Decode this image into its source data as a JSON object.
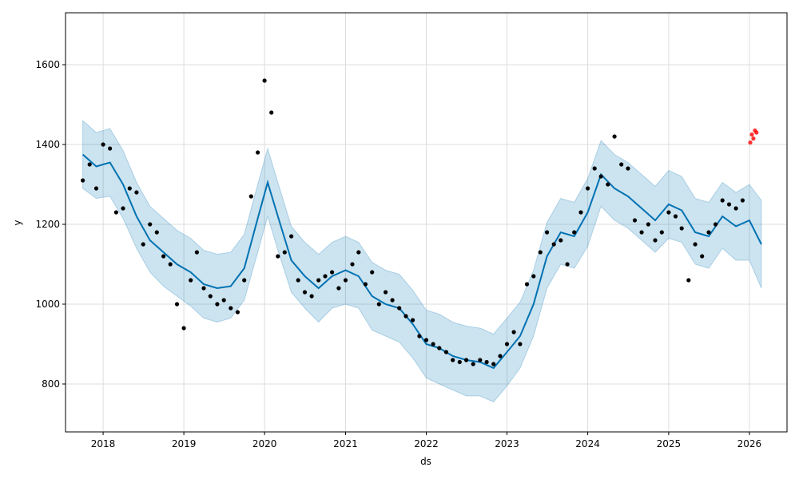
{
  "chart_data": {
    "type": "line",
    "title": "",
    "xlabel": "ds",
    "ylabel": "y",
    "xlim": [
      "2017-07-15",
      "2026-06-20"
    ],
    "ylim": [
      680,
      1730
    ],
    "grid": true,
    "legend": "none",
    "x_ticks": [
      "2018",
      "2019",
      "2020",
      "2021",
      "2022",
      "2023",
      "2024",
      "2025",
      "2026"
    ],
    "y_ticks": [
      800,
      1000,
      1200,
      1400,
      1600
    ],
    "colors": {
      "forecast_line": "#0072B2",
      "uncertainty_band": "#0072B2",
      "observed_points": "#000000",
      "new_points": "#ff0000",
      "grid": "#dddddd"
    },
    "series": [
      {
        "role": "forecast",
        "style": "line",
        "x": [
          "2017-10-01",
          "2017-12-01",
          "2018-02-01",
          "2018-04-01",
          "2018-06-01",
          "2018-08-01",
          "2018-10-01",
          "2018-12-01",
          "2019-02-01",
          "2019-04-01",
          "2019-06-01",
          "2019-08-01",
          "2019-10-01",
          "2019-12-01",
          "2020-01-15",
          "2020-03-01",
          "2020-05-01",
          "2020-07-01",
          "2020-09-01",
          "2020-11-01",
          "2021-01-01",
          "2021-03-01",
          "2021-05-01",
          "2021-07-01",
          "2021-09-01",
          "2021-11-01",
          "2022-01-01",
          "2022-03-01",
          "2022-05-01",
          "2022-07-01",
          "2022-09-01",
          "2022-11-01",
          "2023-01-01",
          "2023-03-01",
          "2023-05-01",
          "2023-07-01",
          "2023-09-01",
          "2023-11-01",
          "2024-01-01",
          "2024-03-01",
          "2024-05-01",
          "2024-07-01",
          "2024-09-01",
          "2024-11-01",
          "2025-01-01",
          "2025-03-01",
          "2025-05-01",
          "2025-07-01",
          "2025-09-01",
          "2025-11-01",
          "2026-01-01",
          "2026-02-24"
        ],
        "y": [
          1375,
          1345,
          1355,
          1300,
          1220,
          1160,
          1130,
          1100,
          1080,
          1050,
          1040,
          1045,
          1090,
          1215,
          1305,
          1220,
          1110,
          1070,
          1040,
          1070,
          1085,
          1070,
          1020,
          1000,
          990,
          950,
          900,
          890,
          870,
          860,
          855,
          840,
          880,
          920,
          1000,
          1120,
          1180,
          1170,
          1230,
          1325,
          1290,
          1270,
          1240,
          1210,
          1250,
          1235,
          1180,
          1170,
          1220,
          1195,
          1210,
          1150
        ]
      },
      {
        "role": "uncertainty_interval",
        "style": "band",
        "x": [
          "2017-10-01",
          "2017-12-01",
          "2018-02-01",
          "2018-04-01",
          "2018-06-01",
          "2018-08-01",
          "2018-10-01",
          "2018-12-01",
          "2019-02-01",
          "2019-04-01",
          "2019-06-01",
          "2019-08-01",
          "2019-10-01",
          "2019-12-01",
          "2020-01-15",
          "2020-03-01",
          "2020-05-01",
          "2020-07-01",
          "2020-09-01",
          "2020-11-01",
          "2021-01-01",
          "2021-03-01",
          "2021-05-01",
          "2021-07-01",
          "2021-09-01",
          "2021-11-01",
          "2022-01-01",
          "2022-03-01",
          "2022-05-01",
          "2022-07-01",
          "2022-09-01",
          "2022-11-01",
          "2023-01-01",
          "2023-03-01",
          "2023-05-01",
          "2023-07-01",
          "2023-09-01",
          "2023-11-01",
          "2024-01-01",
          "2024-03-01",
          "2024-05-01",
          "2024-07-01",
          "2024-09-01",
          "2024-11-01",
          "2025-01-01",
          "2025-03-01",
          "2025-05-01",
          "2025-07-01",
          "2025-09-01",
          "2025-11-01",
          "2026-01-01",
          "2026-02-24"
        ],
        "lower": [
          1290,
          1265,
          1270,
          1215,
          1140,
          1080,
          1045,
          1020,
          995,
          965,
          955,
          965,
          1010,
          1130,
          1220,
          1135,
          1030,
          990,
          955,
          990,
          1000,
          990,
          935,
          920,
          905,
          865,
          815,
          800,
          785,
          770,
          770,
          755,
          795,
          840,
          920,
          1040,
          1100,
          1090,
          1145,
          1245,
          1210,
          1190,
          1160,
          1130,
          1165,
          1155,
          1100,
          1090,
          1140,
          1110,
          1110,
          1040
        ],
        "upper": [
          1460,
          1430,
          1440,
          1385,
          1305,
          1245,
          1215,
          1185,
          1165,
          1135,
          1125,
          1130,
          1175,
          1300,
          1390,
          1305,
          1195,
          1155,
          1125,
          1155,
          1170,
          1155,
          1105,
          1085,
          1075,
          1035,
          985,
          975,
          955,
          945,
          940,
          925,
          965,
          1005,
          1085,
          1205,
          1265,
          1255,
          1315,
          1410,
          1375,
          1355,
          1325,
          1295,
          1335,
          1320,
          1265,
          1255,
          1305,
          1280,
          1300,
          1260
        ]
      },
      {
        "role": "observed",
        "style": "scatter",
        "x": [
          "2017-10-01",
          "2017-11-01",
          "2017-12-01",
          "2018-01-01",
          "2018-02-01",
          "2018-03-01",
          "2018-04-01",
          "2018-05-01",
          "2018-06-01",
          "2018-07-01",
          "2018-08-01",
          "2018-09-01",
          "2018-10-01",
          "2018-11-01",
          "2018-12-01",
          "2019-01-01",
          "2019-02-01",
          "2019-03-01",
          "2019-04-01",
          "2019-05-01",
          "2019-06-01",
          "2019-07-01",
          "2019-08-01",
          "2019-09-01",
          "2019-10-01",
          "2019-11-01",
          "2019-12-01",
          "2020-01-01",
          "2020-02-01",
          "2020-03-01",
          "2020-04-01",
          "2020-05-01",
          "2020-06-01",
          "2020-07-01",
          "2020-08-01",
          "2020-09-01",
          "2020-10-01",
          "2020-11-01",
          "2020-12-01",
          "2021-01-01",
          "2021-02-01",
          "2021-03-01",
          "2021-04-01",
          "2021-05-01",
          "2021-06-01",
          "2021-07-01",
          "2021-08-01",
          "2021-09-01",
          "2021-10-01",
          "2021-11-01",
          "2021-12-01",
          "2022-01-01",
          "2022-02-01",
          "2022-03-01",
          "2022-04-01",
          "2022-05-01",
          "2022-06-01",
          "2022-07-01",
          "2022-08-01",
          "2022-09-01",
          "2022-10-01",
          "2022-11-01",
          "2022-12-01",
          "2023-01-01",
          "2023-02-01",
          "2023-03-01",
          "2023-04-01",
          "2023-05-01",
          "2023-06-01",
          "2023-07-01",
          "2023-08-01",
          "2023-09-01",
          "2023-10-01",
          "2023-11-01",
          "2023-12-01",
          "2024-01-01",
          "2024-02-01",
          "2024-03-01",
          "2024-04-01",
          "2024-05-01",
          "2024-06-01",
          "2024-07-01",
          "2024-08-01",
          "2024-09-01",
          "2024-10-01",
          "2024-11-01",
          "2024-12-01",
          "2025-01-01",
          "2025-02-01",
          "2025-03-01",
          "2025-04-01",
          "2025-05-01",
          "2025-06-01",
          "2025-07-01",
          "2025-08-01",
          "2025-09-01",
          "2025-10-01",
          "2025-11-01",
          "2025-12-01"
        ],
        "y": [
          1310,
          1350,
          1290,
          1400,
          1390,
          1230,
          1240,
          1290,
          1280,
          1150,
          1200,
          1180,
          1120,
          1100,
          1000,
          940,
          1060,
          1130,
          1040,
          1020,
          1000,
          1010,
          990,
          980,
          1060,
          1270,
          1380,
          1560,
          1480,
          1120,
          1130,
          1170,
          1060,
          1030,
          1020,
          1060,
          1070,
          1080,
          1040,
          1060,
          1100,
          1130,
          1050,
          1080,
          1000,
          1030,
          1010,
          990,
          970,
          960,
          920,
          910,
          900,
          890,
          880,
          860,
          855,
          860,
          850,
          860,
          855,
          850,
          870,
          900,
          930,
          900,
          1050,
          1070,
          1130,
          1180,
          1150,
          1160,
          1100,
          1180,
          1230,
          1290,
          1340,
          1320,
          1300,
          1420,
          1350,
          1340,
          1210,
          1180,
          1200,
          1160,
          1180,
          1230,
          1220,
          1190,
          1060,
          1150,
          1120,
          1180,
          1200,
          1260,
          1250,
          1240,
          1260
        ]
      },
      {
        "role": "new_observed",
        "style": "scatter",
        "x": [
          "2026-01-05",
          "2026-01-12",
          "2026-01-19",
          "2026-01-26",
          "2026-02-02"
        ],
        "y": [
          1405,
          1425,
          1415,
          1435,
          1430
        ]
      }
    ]
  }
}
